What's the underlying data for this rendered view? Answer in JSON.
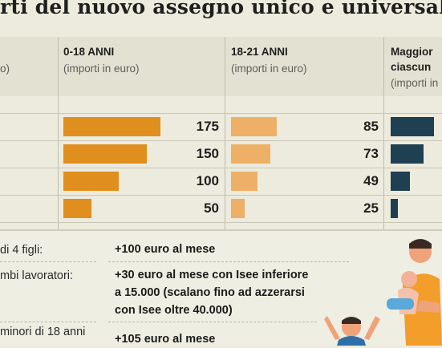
{
  "title": "rti del nuovo assegno unico e universale",
  "columns": [
    {
      "head": "",
      "sub": "o)"
    },
    {
      "head": "0-18 ANNI",
      "sub": "(importi in euro)"
    },
    {
      "head": "18-21 ANNI",
      "sub": "(importi in euro)"
    },
    {
      "head": "Maggior",
      "head2": "ciascun",
      "sub": "(importi in"
    }
  ],
  "colors": {
    "orange_dark": "#e08e1e",
    "orange_light": "#eeb066",
    "navy": "#1f3f52"
  },
  "chart_data": {
    "type": "bar",
    "series": [
      {
        "name": "0-18 ANNI",
        "values": [
          175,
          150,
          100,
          50
        ]
      },
      {
        "name": "18-21 ANNI",
        "values": [
          85,
          73,
          49,
          25
        ]
      },
      {
        "name": "Maggior ciascun",
        "values": [
          null,
          null,
          null,
          null
        ]
      }
    ],
    "navy_fill_fractions": [
      1.0,
      0.75,
      0.45,
      0.17
    ],
    "xlabel": "",
    "ylabel": ""
  },
  "rows": [
    {
      "left": "di 4 figli:",
      "right": [
        "+100 euro al mese"
      ]
    },
    {
      "left": "mbi lavoratori:",
      "right": [
        "+30 euro al mese con Isee inferiore",
        "a 15.000 (scalano fino ad azzerarsi",
        "con Isee oltre 40.000)"
      ]
    },
    {
      "left": "minori di 18 anni",
      "right": [
        "+105 euro al mese"
      ]
    }
  ]
}
